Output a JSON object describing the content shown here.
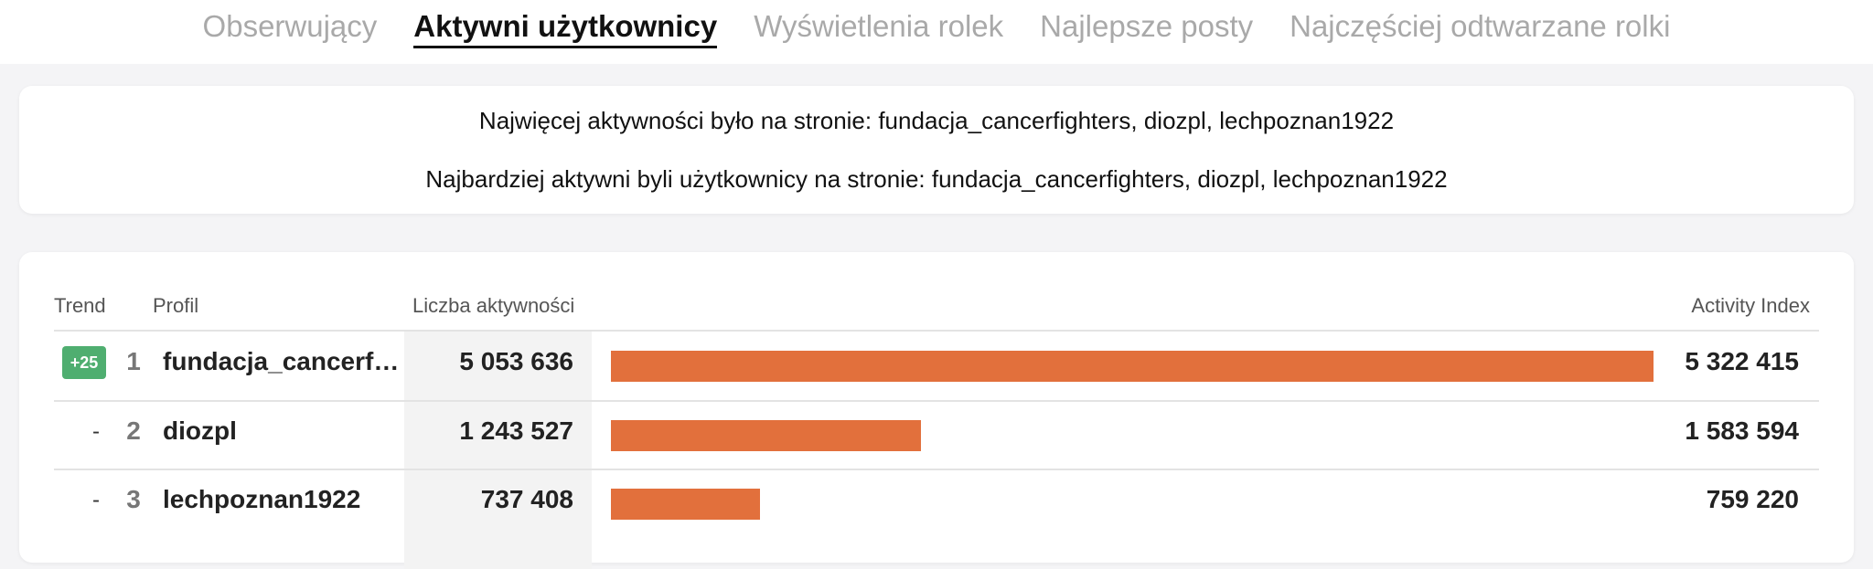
{
  "tabs": [
    {
      "label": "Obserwujący",
      "active": false
    },
    {
      "label": "Aktywni użytkownicy",
      "active": true
    },
    {
      "label": "Wyświetlenia rolek",
      "active": false
    },
    {
      "label": "Najlepsze posty",
      "active": false
    },
    {
      "label": "Najczęściej odtwarzane rolki",
      "active": false
    }
  ],
  "summary": {
    "line1": "Najwięcej aktywności było na stronie: fundacja_cancerfighters, diozpl, lechpoznan1922",
    "line2": "Najbardziej aktywni byli użytkownicy na stronie: fundacja_cancerfighters, diozpl, lechpoznan1922"
  },
  "table": {
    "headers": {
      "trend": "Trend",
      "profile": "Profil",
      "count": "Liczba aktywności",
      "index": "Activity Index"
    },
    "bar_color": "#e2703c",
    "trend_badge_color": "#4fae70",
    "rows": [
      {
        "trend": "+25",
        "trend_type": "badge",
        "rank": "1",
        "profile": "fundacja_cancerfighters",
        "count": "5 053 636",
        "index": "5 322 415",
        "index_value": 5322415
      },
      {
        "trend": "-",
        "trend_type": "dash",
        "rank": "2",
        "profile": "diozpl",
        "count": "1 243 527",
        "index": "1 583 594",
        "index_value": 1583594
      },
      {
        "trend": "-",
        "trend_type": "dash",
        "rank": "3",
        "profile": "lechpoznan1922",
        "count": "737 408",
        "index": "759 220",
        "index_value": 759220
      }
    ]
  }
}
